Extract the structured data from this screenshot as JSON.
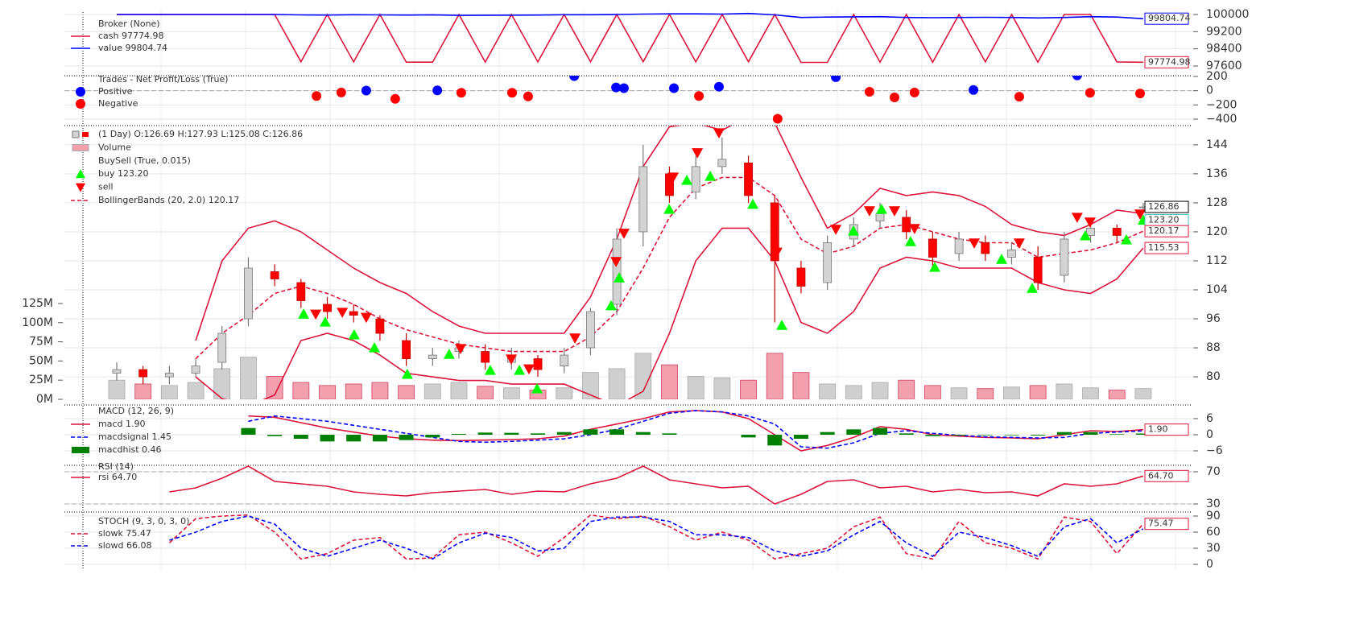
{
  "chart_data": [
    {
      "type": "line",
      "title": "Broker (None)",
      "grid": true,
      "ylim": [
        97150,
        100225
      ],
      "yticks": [
        97600,
        98400,
        99200,
        100000
      ],
      "series": [
        {
          "name": "cash 97774.98",
          "color": "#dc143c",
          "values": [
            100000,
            100000,
            100000,
            100000,
            100000,
            100000,
            100000,
            97800,
            100000,
            97790,
            100000,
            97780,
            97780,
            100000,
            97785,
            100000,
            97790,
            100000,
            97800,
            100000,
            97800,
            100000,
            97790,
            100000,
            97800,
            100000,
            97770,
            97770,
            100000,
            97780,
            100000,
            97775,
            100000,
            97790,
            100000,
            97780,
            100000,
            100000,
            97790,
            97774.98
          ]
        },
        {
          "name": "value 99804.74",
          "color": "#0000ff",
          "values": [
            100000,
            100000,
            100000,
            100000,
            100000,
            100000,
            100000,
            99980,
            99975,
            99990,
            99980,
            99975,
            99985,
            99960,
            99965,
            99970,
            99975,
            99990,
            99990,
            100000,
            100020,
            100030,
            100030,
            100020,
            100050,
            99980,
            99860,
            99880,
            99890,
            99900,
            99860,
            99850,
            99860,
            99870,
            99860,
            99840,
            99860,
            99900,
            99880,
            99804.74
          ]
        }
      ],
      "tags": [
        {
          "value": 99804.74,
          "label": "99804.74",
          "color": "#0000ff"
        },
        {
          "value": 97774.98,
          "label": "97774.98",
          "color": "#dc143c"
        }
      ]
    },
    {
      "type": "scatter",
      "title": "Trades - Net Profit/Loss (True)",
      "grid": true,
      "ylim": [
        -468,
        211
      ],
      "yticks": [
        200,
        0,
        {
          "value": -200,
          "label": "−200"
        },
        {
          "value": -400,
          "label": "−400"
        }
      ],
      "hlines": [
        0
      ],
      "series": [
        {
          "name": "Positive",
          "color": "#0000ff",
          "x": [
            9.48,
            12.18,
            17.38,
            18.97,
            19.27,
            21.17,
            22.88,
            27.32,
            32.55,
            36.49
          ],
          "values": [
            2,
            5,
            205,
            45,
            35,
            35,
            55,
            190,
            10,
            215
          ]
        },
        {
          "name": "Negative",
          "color": "#ff0000",
          "x": [
            7.59,
            8.53,
            10.58,
            13.09,
            15.02,
            15.63,
            22.12,
            25.11,
            28.6,
            29.55,
            30.31,
            34.29,
            36.98,
            38.88
          ],
          "values": [
            -75,
            -25,
            -115,
            -30,
            -30,
            -80,
            -75,
            -395,
            -15,
            -95,
            -25,
            -85,
            -30,
            -40
          ]
        }
      ]
    },
    {
      "type": "candlestick",
      "grid": true,
      "ylim": [
        73.8,
        149.3
      ],
      "yticks": [
        80,
        88,
        96,
        104,
        112,
        120,
        128,
        136,
        144
      ],
      "ohlc_name": "(1 Day) O:126.69 H:127.93 L:125.08 C:126.86",
      "up_color": "#d3d3d3",
      "down_color": "#ff0000",
      "open": [
        81,
        82,
        80,
        81,
        84,
        96,
        109,
        106,
        100,
        98,
        96,
        90,
        85,
        87,
        87,
        84,
        85,
        83,
        88,
        100,
        120,
        136,
        131,
        138,
        139,
        128,
        110,
        106,
        118,
        123,
        124,
        118,
        114,
        117,
        113,
        113,
        108,
        119,
        121,
        126.69
      ],
      "high": [
        84,
        83,
        83,
        85,
        94,
        113,
        111,
        107,
        102,
        100,
        97,
        92,
        88,
        90,
        89,
        88,
        86,
        88,
        99,
        121,
        144,
        138,
        141,
        146,
        141,
        130,
        112,
        119,
        124,
        128,
        126,
        120,
        120,
        119,
        117,
        116,
        120,
        123,
        122,
        127.93
      ],
      "low": [
        79,
        78,
        78,
        80,
        82,
        94,
        105,
        99,
        96,
        95,
        90,
        83,
        83,
        85,
        82,
        82,
        80,
        81,
        86,
        97,
        116,
        128,
        129,
        136,
        128,
        95,
        103,
        104,
        116,
        121,
        118,
        110,
        112,
        112,
        111,
        104,
        106,
        117,
        117,
        125.08
      ],
      "close": [
        82,
        80,
        81,
        83,
        92,
        110,
        107,
        101,
        98,
        97,
        92,
        85,
        86,
        88,
        84,
        86,
        82,
        86,
        98,
        118,
        138,
        130,
        138,
        140,
        130,
        112,
        105,
        117,
        122,
        125,
        120,
        113,
        118,
        114,
        115,
        106,
        118,
        121,
        119,
        126.86
      ],
      "volume_name": "Volume",
      "volume_up_color": "#cfcfcf",
      "volume_down_color": "#f2a0ae",
      "volume": [
        25,
        20,
        18,
        22,
        40,
        55,
        30,
        22,
        18,
        20,
        22,
        18,
        20,
        22,
        17,
        15,
        12,
        15,
        35,
        40,
        60,
        45,
        30,
        28,
        25,
        60,
        35,
        20,
        18,
        22,
        25,
        18,
        15,
        14,
        16,
        18,
        20,
        15,
        12,
        14
      ],
      "volume_ylim": [
        0,
        357
      ],
      "volume_ticks": [
        {
          "value": 0,
          "label": "0M"
        },
        {
          "value": 25,
          "label": "25M"
        },
        {
          "value": 50,
          "label": "50M"
        },
        {
          "value": 75,
          "label": "75M"
        },
        {
          "value": 100,
          "label": "100M"
        },
        {
          "value": 125,
          "label": "125M"
        }
      ],
      "buysell_title": "BuySell (True, 0.015)",
      "buy": {
        "name": "buy 123.20",
        "color": "#00ff00",
        "x": [
          7.1,
          7.92,
          9.02,
          9.79,
          11.04,
          12.63,
          14.19,
          15.3,
          15.97,
          18.78,
          19.09,
          20.99,
          21.66,
          22.55,
          24.17,
          25.27,
          27.99,
          29.06,
          30.16,
          31.08,
          33.62,
          34.78,
          36.8,
          38.36,
          39
        ],
        "values": [
          97.3,
          95.1,
          91.6,
          88,
          80.7,
          86.2,
          81.8,
          81.8,
          76.7,
          99.6,
          107.3,
          126.2,
          134.2,
          135.3,
          127.6,
          94.2,
          120.2,
          126.2,
          117.3,
          110.2,
          112.4,
          104.4,
          118.9,
          117.8,
          123.2
        ]
      },
      "sell": {
        "name": "sell",
        "color": "#ff0000",
        "x": [
          7.56,
          8.57,
          9.48,
          13.06,
          14.99,
          15.66,
          17.41,
          18.97,
          19.27,
          21.14,
          22.06,
          22.88,
          25.08,
          27.32,
          28.6,
          29.55,
          30.31,
          32.58,
          34.29,
          36.49,
          36.98,
          38.88
        ],
        "values": [
          97.3,
          97.8,
          96.4,
          87.8,
          84.9,
          82.2,
          90.7,
          111.8,
          119.6,
          135.1,
          141.8,
          147.3,
          114.4,
          120.7,
          125.8,
          125.8,
          120.9,
          116.9,
          116.9,
          124,
          122.7,
          124.9
        ]
      },
      "bollinger": {
        "name": "BollingerBands (20, 2.0) 120.17",
        "color": "#dc143c",
        "mid": [
          null,
          null,
          null,
          85,
          92,
          97,
          103,
          105,
          103,
          100,
          96,
          93,
          91,
          89,
          88,
          87,
          87,
          87,
          91,
          98,
          110,
          124,
          132,
          135,
          135,
          130,
          118,
          114,
          116,
          121,
          122,
          120,
          118,
          117,
          117,
          113,
          114,
          115,
          117,
          120.17
        ],
        "top": [
          null,
          null,
          null,
          90,
          112,
          121,
          123,
          120,
          115,
          110,
          106,
          103,
          98,
          94,
          92,
          92,
          92,
          92,
          102,
          118,
          138,
          149,
          150,
          148,
          152,
          150,
          135,
          121,
          125,
          132,
          130,
          131,
          130,
          127,
          122,
          120,
          119,
          122,
          126,
          125
        ],
        "bot": [
          null,
          null,
          null,
          80,
          74,
          72,
          75,
          90,
          92,
          90,
          86,
          81,
          80,
          79,
          79,
          78,
          78,
          78,
          75,
          72,
          76,
          92,
          112,
          121,
          121,
          112,
          95,
          92,
          98,
          110,
          113,
          112,
          110,
          110,
          110,
          106,
          104,
          103,
          107,
          115.53
        ]
      },
      "tags": [
        {
          "value": 126.86,
          "label": "126.86",
          "color": "#000000"
        },
        {
          "value": 123.2,
          "label": "123.20",
          "color": "#40c0c0"
        },
        {
          "value": 120.17,
          "label": "120.17",
          "color": "#dc143c"
        },
        {
          "value": 115.53,
          "label": "115.53",
          "color": "#dc143c"
        }
      ]
    },
    {
      "type": "line",
      "title": "MACD (12, 26, 9)",
      "grid": true,
      "ylim": [
        -10.5,
        11.1
      ],
      "yticks": [
        6,
        0,
        {
          "value": -6,
          "label": "−6"
        }
      ],
      "series": [
        {
          "name": "macd 1.90",
          "color": "#dc143c",
          "values": [
            null,
            null,
            null,
            null,
            null,
            7,
            6.5,
            4.5,
            2.5,
            1,
            -0.5,
            -1.5,
            -2,
            -2.2,
            -2,
            -1.8,
            -1.5,
            -0.5,
            2,
            4,
            6,
            8.5,
            9,
            8.5,
            6,
            0,
            -6,
            -4,
            -1,
            3,
            2,
            0,
            -0.5,
            -1,
            -1.2,
            -1.5,
            0,
            1.5,
            1.2,
            1.9
          ]
        },
        {
          "name": "macdsignal 1.45",
          "color": "#0000ff",
          "dash": true,
          "values": [
            null,
            null,
            null,
            null,
            null,
            5,
            7,
            6,
            5,
            3.5,
            2,
            0.5,
            -1,
            -2.5,
            -2.8,
            -2.5,
            -2,
            -1.5,
            0,
            2,
            5,
            8,
            9,
            8.5,
            7,
            4,
            -4.5,
            -5,
            -3,
            0.5,
            1.5,
            0.5,
            -0.2,
            -0.8,
            -1,
            -1.2,
            -1,
            0.5,
            1,
            1.45
          ]
        },
        {
          "name": "macdhist 0.46",
          "color": "#008000",
          "kind": "bar",
          "values": [
            null,
            null,
            null,
            null,
            null,
            2.5,
            -0.5,
            -1.5,
            -2.5,
            -2.5,
            -2.5,
            -2,
            -1,
            0.3,
            0.8,
            0.7,
            0.5,
            1,
            2,
            2,
            1,
            0.5,
            0,
            0,
            -1,
            -4,
            -1.5,
            1,
            2,
            2.5,
            0.5,
            -0.5,
            -0.3,
            -0.2,
            -0.2,
            -0.3,
            1,
            1,
            0.2,
            0.46
          ]
        }
      ],
      "tags": [
        {
          "value": 1.9,
          "label": "1.90",
          "color": "#dc143c"
        }
      ]
    },
    {
      "type": "line",
      "title": "RSI (14)",
      "grid": true,
      "ylim": [
        22,
        78
      ],
      "yticks": [
        70,
        30
      ],
      "hlines": [
        70,
        30
      ],
      "series": [
        {
          "name": "rsi 64.70",
          "color": "#dc143c",
          "values": [
            null,
            null,
            45,
            50,
            62,
            77,
            58,
            55,
            52,
            45,
            42,
            40,
            44,
            46,
            48,
            42,
            46,
            45,
            55,
            62,
            77,
            60,
            55,
            50,
            52,
            30,
            42,
            58,
            60,
            50,
            52,
            45,
            48,
            44,
            45,
            40,
            55,
            52,
            55,
            64.7
          ]
        }
      ],
      "tags": [
        {
          "value": 64.7,
          "label": "64.70",
          "color": "#dc143c"
        }
      ]
    },
    {
      "type": "line",
      "title": "STOCH (9, 3, 0, 3, 0)",
      "grid": true,
      "ylim": [
        -10.5,
        97.5
      ],
      "yticks": [
        90,
        60,
        30,
        0
      ],
      "series": [
        {
          "name": "slowk 75.47",
          "color": "#dc143c",
          "dash": true,
          "values": [
            null,
            null,
            40,
            85,
            90,
            92,
            60,
            10,
            20,
            45,
            50,
            10,
            12,
            55,
            60,
            40,
            15,
            50,
            92,
            85,
            90,
            70,
            45,
            60,
            45,
            10,
            20,
            30,
            70,
            88,
            20,
            10,
            80,
            40,
            30,
            10,
            88,
            80,
            20,
            75.47
          ]
        },
        {
          "name": "slowd 66.08",
          "color": "#0000ff",
          "dash": true,
          "values": [
            null,
            null,
            45,
            60,
            80,
            90,
            75,
            30,
            15,
            30,
            45,
            30,
            10,
            40,
            58,
            50,
            25,
            30,
            80,
            88,
            88,
            80,
            55,
            55,
            50,
            25,
            15,
            25,
            55,
            80,
            40,
            15,
            60,
            50,
            35,
            15,
            70,
            85,
            40,
            66.08
          ]
        }
      ],
      "tags": [
        {
          "value": 75.47,
          "label": "75.47",
          "color": "#dc143c"
        }
      ]
    }
  ]
}
